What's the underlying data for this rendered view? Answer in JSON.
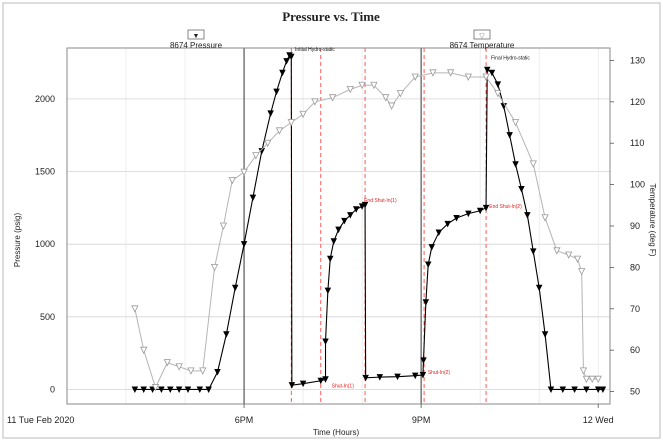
{
  "chart_data": {
    "type": "line",
    "title": "Pressure vs. Time",
    "xlabel": "Time (Hours)",
    "ylabel_left": "Pressure (psig)",
    "ylabel_right": "Temperature (deg F)",
    "legend": [
      {
        "label": "8674 Pressure",
        "symbol": "▼",
        "color": "#000000"
      },
      {
        "label": "8674 Temperature",
        "symbol": "▽",
        "color": "#aaaaaa"
      }
    ],
    "x_range_hours": [
      15,
      24.2
    ],
    "x_ticks": [
      {
        "h": 15,
        "label": "11 Tue Feb 2020"
      },
      {
        "h": 18,
        "label": "6PM"
      },
      {
        "h": 21,
        "label": "9PM"
      },
      {
        "h": 24,
        "label": "12 Wed"
      }
    ],
    "y_left": {
      "min": -100,
      "max": 2350,
      "ticks": [
        0,
        500,
        1000,
        1500,
        2000
      ]
    },
    "y_right": {
      "min": 47,
      "max": 133,
      "ticks": [
        50,
        60,
        70,
        80,
        90,
        100,
        110,
        120,
        130
      ]
    },
    "grid": true,
    "vlines_solid_hours": [
      18,
      21
    ],
    "vlines_red_hours": [
      18.8,
      19.3,
      20.05,
      21.05,
      22.1
    ],
    "annotations": [
      {
        "text": "Initial Hydro-static",
        "h": 18.83,
        "p": 2330,
        "color": "#111111"
      },
      {
        "text": "End Shut-In(1)",
        "h": 20.0,
        "p": 1290,
        "color": "#e02020"
      },
      {
        "text": "End Shut-In(2)",
        "h": 22.12,
        "p": 1250,
        "color": "#e02020"
      },
      {
        "text": "Shut-In(1)",
        "h": 19.45,
        "p": 15,
        "color": "#e02020"
      },
      {
        "text": "Shut-In(2)",
        "h": 21.08,
        "p": 105,
        "color": "#e02020"
      },
      {
        "text": "Final Hydro-static",
        "h": 22.15,
        "p": 2270,
        "color": "#111111"
      }
    ],
    "series": [
      {
        "name": "8674 Pressure",
        "axis": "left",
        "marker": "down-triangle",
        "color": "#000000",
        "points": [
          [
            16.15,
            0
          ],
          [
            16.3,
            0
          ],
          [
            16.45,
            0
          ],
          [
            16.6,
            0
          ],
          [
            16.75,
            0
          ],
          [
            16.9,
            0
          ],
          [
            17.05,
            0
          ],
          [
            17.25,
            0
          ],
          [
            17.4,
            0
          ],
          [
            17.55,
            120
          ],
          [
            17.7,
            380
          ],
          [
            17.85,
            700
          ],
          [
            18.0,
            1000
          ],
          [
            18.15,
            1320
          ],
          [
            18.3,
            1640
          ],
          [
            18.45,
            1900
          ],
          [
            18.55,
            2050
          ],
          [
            18.65,
            2180
          ],
          [
            18.72,
            2260
          ],
          [
            18.77,
            2300
          ],
          [
            18.8,
            2290
          ],
          [
            18.81,
            30
          ],
          [
            19.0,
            40
          ],
          [
            19.3,
            60
          ],
          [
            19.38,
            70
          ],
          [
            19.38,
            330
          ],
          [
            19.42,
            680
          ],
          [
            19.46,
            900
          ],
          [
            19.52,
            1020
          ],
          [
            19.6,
            1100
          ],
          [
            19.7,
            1160
          ],
          [
            19.8,
            1200
          ],
          [
            19.9,
            1240
          ],
          [
            20.0,
            1260
          ],
          [
            20.05,
            1270
          ],
          [
            20.06,
            80
          ],
          [
            20.3,
            85
          ],
          [
            20.6,
            88
          ],
          [
            20.9,
            95
          ],
          [
            21.03,
            100
          ],
          [
            21.04,
            200
          ],
          [
            21.08,
            600
          ],
          [
            21.12,
            860
          ],
          [
            21.18,
            980
          ],
          [
            21.3,
            1080
          ],
          [
            21.45,
            1140
          ],
          [
            21.6,
            1180
          ],
          [
            21.8,
            1210
          ],
          [
            22.0,
            1230
          ],
          [
            22.1,
            1250
          ],
          [
            22.12,
            2200
          ],
          [
            22.2,
            2180
          ],
          [
            22.3,
            2100
          ],
          [
            22.4,
            1950
          ],
          [
            22.5,
            1750
          ],
          [
            22.6,
            1550
          ],
          [
            22.7,
            1380
          ],
          [
            22.8,
            1200
          ],
          [
            22.9,
            950
          ],
          [
            23.0,
            700
          ],
          [
            23.1,
            380
          ],
          [
            23.2,
            0
          ],
          [
            23.4,
            0
          ],
          [
            23.6,
            0
          ],
          [
            23.8,
            0
          ],
          [
            24.0,
            0
          ],
          [
            24.08,
            0
          ]
        ]
      },
      {
        "name": "8674 Temperature",
        "axis": "right",
        "marker": "open-down-triangle",
        "color": "#999999",
        "points": [
          [
            16.15,
            70
          ],
          [
            16.3,
            60
          ],
          [
            16.5,
            51
          ],
          [
            16.7,
            57
          ],
          [
            16.9,
            56
          ],
          [
            17.1,
            55
          ],
          [
            17.3,
            55
          ],
          [
            17.5,
            80
          ],
          [
            17.65,
            90
          ],
          [
            17.8,
            101
          ],
          [
            18.0,
            103
          ],
          [
            18.2,
            107
          ],
          [
            18.4,
            110
          ],
          [
            18.6,
            113
          ],
          [
            18.8,
            115
          ],
          [
            19.0,
            117
          ],
          [
            19.2,
            120
          ],
          [
            19.5,
            121
          ],
          [
            19.8,
            123
          ],
          [
            20.0,
            124
          ],
          [
            20.2,
            124
          ],
          [
            20.4,
            121
          ],
          [
            20.5,
            119
          ],
          [
            20.65,
            122
          ],
          [
            20.9,
            126
          ],
          [
            21.2,
            127
          ],
          [
            21.5,
            127
          ],
          [
            21.8,
            126
          ],
          [
            22.1,
            126
          ],
          [
            22.3,
            122
          ],
          [
            22.6,
            115
          ],
          [
            22.9,
            105
          ],
          [
            23.1,
            92
          ],
          [
            23.3,
            84
          ],
          [
            23.5,
            83
          ],
          [
            23.65,
            82
          ],
          [
            23.72,
            79
          ],
          [
            23.75,
            55
          ],
          [
            23.8,
            53
          ],
          [
            23.9,
            53
          ],
          [
            24.0,
            53
          ]
        ]
      }
    ]
  }
}
